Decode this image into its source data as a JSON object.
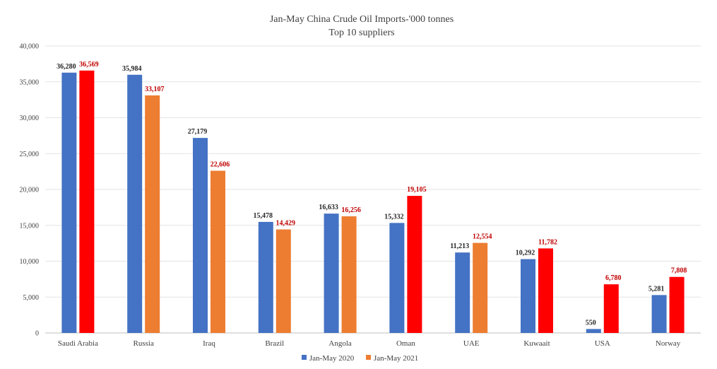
{
  "chart_data": {
    "type": "bar",
    "title_lines": [
      "Jan-May China Crude Oil Imports-'000 tonnes",
      "Top 10 suppliers"
    ],
    "categories": [
      "Saudi Arabia",
      "Russia",
      "Iraq",
      "Brazil",
      "Angola",
      "Oman",
      "UAE",
      "Kuwaait",
      "USA",
      "Norway"
    ],
    "series": [
      {
        "name": "Jan-May 2020",
        "color": "#4472C4",
        "values": [
          36280,
          35984,
          27179,
          15478,
          16633,
          15332,
          11213,
          10292,
          550,
          5281
        ],
        "labels": [
          "36,280",
          "35,984",
          "27,179",
          "15,478",
          "16,633",
          "15,332",
          "11,213",
          "10,292",
          "550",
          "5,281"
        ],
        "label_color": "#262626"
      },
      {
        "name": "Jan-May 2021",
        "color": "#ED7D31",
        "values": [
          36569,
          33107,
          22606,
          14429,
          16256,
          19105,
          12554,
          11782,
          6780,
          7808
        ],
        "labels": [
          "36,569",
          "33,107",
          "22,606",
          "14,429",
          "16,256",
          "19,105",
          "12,554",
          "11,782",
          "6,780",
          "7,808"
        ],
        "label_color": "#C00000",
        "bar_colors": [
          "#FF0000",
          "#ED7D31",
          "#ED7D31",
          "#ED7D31",
          "#ED7D31",
          "#FF0000",
          "#ED7D31",
          "#FF0000",
          "#FF0000",
          "#FF0000"
        ]
      }
    ],
    "ylim": [
      0,
      40000
    ],
    "yticks": [
      0,
      5000,
      10000,
      15000,
      20000,
      25000,
      30000,
      35000,
      40000
    ],
    "ytick_labels": [
      "0",
      "5,000",
      "10,000",
      "15,000",
      "20,000",
      "25,000",
      "30,000",
      "35,000",
      "40,000"
    ],
    "grid": true,
    "legend_position": "bottom"
  }
}
